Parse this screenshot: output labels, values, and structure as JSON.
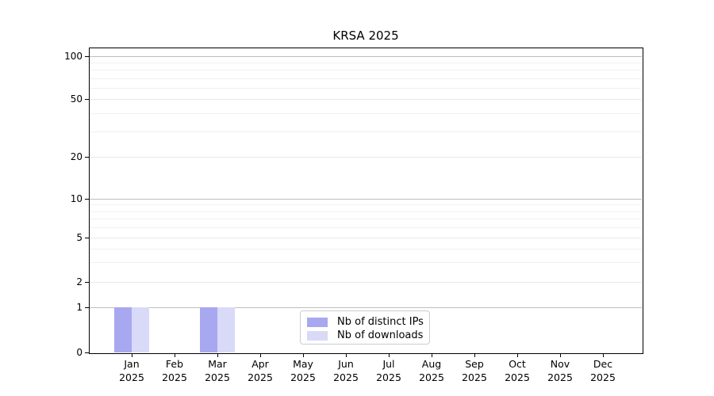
{
  "chart_data": {
    "type": "bar",
    "title": "KRSA 2025",
    "categories": [
      "Jan",
      "Feb",
      "Mar",
      "Apr",
      "May",
      "Jun",
      "Jul",
      "Aug",
      "Sep",
      "Oct",
      "Nov",
      "Dec"
    ],
    "category_year": "2025",
    "series": [
      {
        "name": "Nb of distinct IPs",
        "color": "#a8a8f0",
        "values": [
          1,
          0,
          1,
          0,
          0,
          0,
          0,
          0,
          0,
          0,
          0,
          0
        ]
      },
      {
        "name": "Nb of downloads",
        "color": "#d9d9f8",
        "values": [
          1,
          0,
          1,
          0,
          0,
          0,
          0,
          0,
          0,
          0,
          0,
          0
        ]
      }
    ],
    "xlabel": "",
    "ylabel": "",
    "y_ticks": [
      0,
      1,
      2,
      5,
      10,
      20,
      50,
      100
    ],
    "y_minor_gridlines": [
      3,
      4,
      6,
      7,
      8,
      9,
      30,
      40,
      60,
      70,
      80,
      90
    ],
    "ylim": [
      0,
      100
    ],
    "y_scale": "log-like (0 anchored at baseline)",
    "grid": "horizontal",
    "legend_position": "inside-bottom-center",
    "colors": {
      "decade_gridline": "#bdbdbd",
      "major_gridline": "#e8e8e8",
      "minor_gridline": "#f0f0f0",
      "axis": "#000000",
      "legend_border": "#cccccc",
      "background": "#ffffff"
    }
  }
}
